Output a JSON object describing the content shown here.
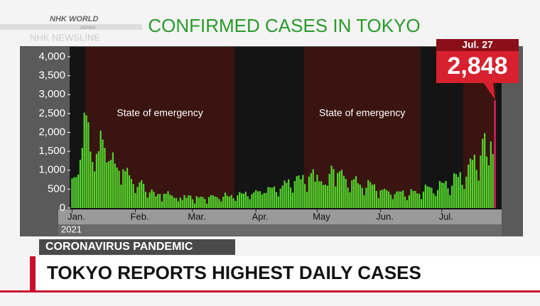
{
  "broadcast": {
    "logo": "NHK WORLD",
    "logo_sub": "JAPAN",
    "program": "NHK NEWSLINE",
    "topic": "CORONAVIRUS PANDEMIC",
    "headline": "TOKYO REPORTS HIGHEST DAILY CASES"
  },
  "chart_data": {
    "type": "bar",
    "title": "CONFIRMED CASES IN TOKYO",
    "year_label": "2021",
    "color": "#52d42c",
    "values": [
      783,
      814,
      816,
      884,
      1278,
      1591,
      2520,
      2450,
      2268,
      1494,
      1219,
      970,
      1433,
      1502,
      2044,
      1809,
      1592,
      1204,
      1240,
      1274,
      1471,
      1175,
      1070,
      986,
      618,
      1026,
      973,
      1064,
      868,
      769,
      633,
      393,
      556,
      676,
      734,
      639,
      429,
      276,
      412,
      491,
      434,
      307,
      369,
      371,
      178,
      376,
      378,
      445,
      353,
      328,
      272,
      266,
      178,
      275,
      213,
      340,
      270,
      337,
      329,
      232,
      121,
      316,
      279,
      301,
      293,
      237,
      116,
      290,
      340,
      335,
      304,
      289,
      239,
      175,
      300,
      409,
      323,
      303,
      342,
      256,
      187,
      337,
      420,
      394,
      376,
      430,
      313,
      234,
      364,
      414,
      475,
      440,
      446,
      355,
      399,
      399,
      555,
      545,
      537,
      570,
      421,
      306,
      510,
      591,
      729,
      667,
      759,
      543,
      405,
      711,
      843,
      861,
      759,
      876,
      635,
      425,
      828,
      925,
      1027,
      697,
      879,
      708,
      708,
      609,
      621,
      591,
      907,
      1121,
      1032,
      573,
      925,
      969,
      1010,
      854,
      772,
      542,
      419,
      732,
      766,
      843,
      654,
      618,
      535,
      340,
      537,
      743,
      684,
      614,
      629,
      449,
      260,
      471,
      487,
      508,
      472,
      436,
      351,
      235,
      369,
      440,
      439,
      436,
      467,
      304,
      209,
      337,
      501,
      452,
      453,
      388,
      376,
      236,
      435,
      619,
      570,
      562,
      534,
      386,
      317,
      476,
      714,
      673,
      660,
      716,
      518,
      342,
      593,
      920,
      896,
      822,
      950,
      614,
      502,
      830,
      1149,
      1308,
      1271,
      1410,
      1008,
      727,
      1387,
      1832,
      1979,
      1359,
      1128,
      1763,
      1429,
      2848
    ],
    "xlim": [
      -0.5,
      207.5
    ],
    "xticks": [
      {
        "value": 0,
        "label": "Jan."
      },
      {
        "value": 31,
        "label": "Feb."
      },
      {
        "value": 59,
        "label": "Mar."
      },
      {
        "value": 90,
        "label": "Apr."
      },
      {
        "value": 120,
        "label": "May"
      },
      {
        "value": 151,
        "label": "Jun."
      },
      {
        "value": 181,
        "label": "Jul."
      }
    ],
    "ylim": [
      0,
      4000
    ],
    "yticks": [
      0,
      500,
      {
        "value": 1000,
        "label": "1,000"
      },
      {
        "value": 1500,
        "label": "1,500"
      },
      {
        "value": 2000,
        "label": "2,000"
      },
      {
        "value": 2500,
        "label": "2,500"
      },
      {
        "value": 3000,
        "label": "3,000"
      },
      {
        "value": 3500,
        "label": "3,500"
      },
      {
        "value": 4000,
        "label": "4,000"
      }
    ],
    "shaded": [
      {
        "from": 6.5,
        "to": 79.5,
        "label": "State of emergency"
      },
      {
        "from": 113.5,
        "to": 170.5,
        "label": "State of emergency"
      },
      {
        "from": 191.5,
        "to": 207.5
      }
    ],
    "shade_color": "#3a1410",
    "highlight_color": "#e8206a",
    "callout": {
      "label": "Jul. 27",
      "value_label": "2,848",
      "color": "#d8202e"
    }
  }
}
